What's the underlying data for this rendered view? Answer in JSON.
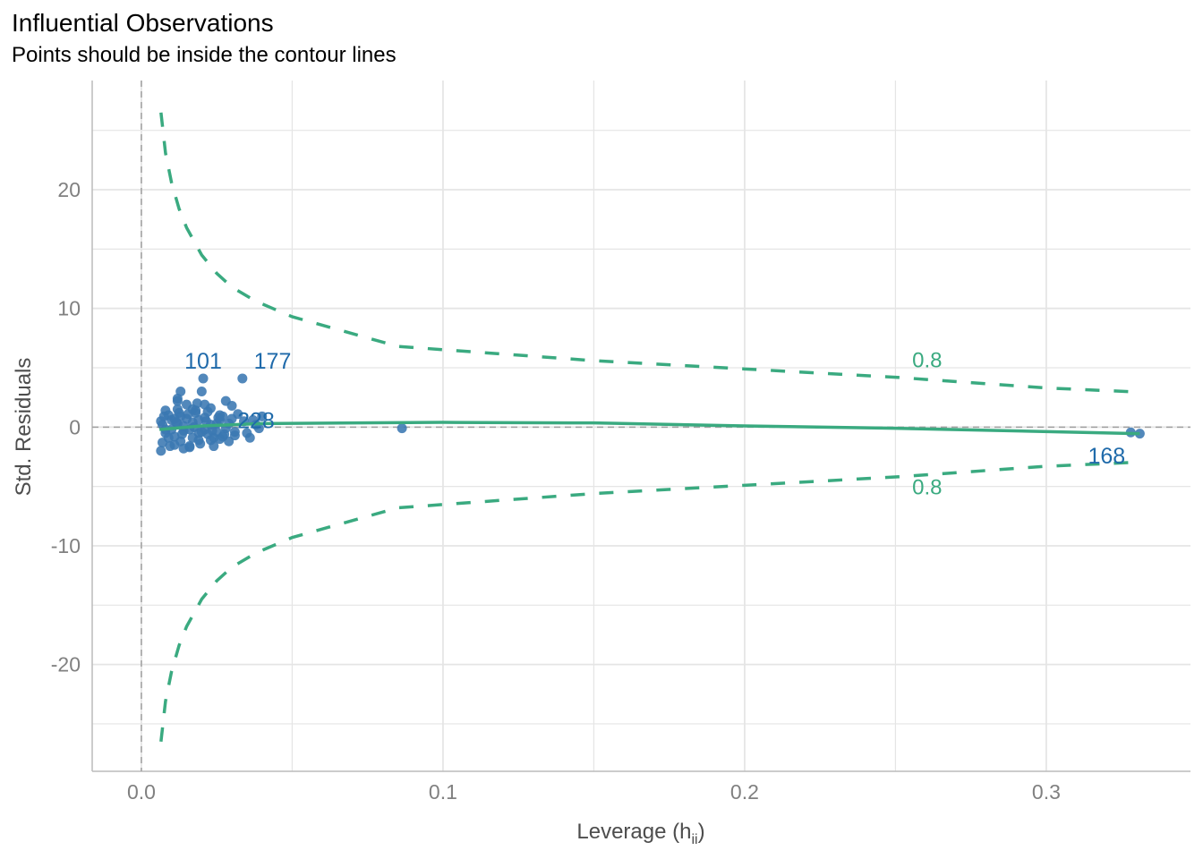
{
  "chart_data": {
    "type": "scatter",
    "title": "Influential Observations",
    "subtitle": "Points should be inside the contour lines",
    "xlabel": "Leverage (h",
    "xlabel_sub": "ii",
    "xlabel_end": ")",
    "ylabel": "Std. Residuals",
    "xlim": [
      -0.0163,
      0.3478
    ],
    "ylim": [
      -29.0,
      29.2
    ],
    "x_ticks": [
      0.0,
      0.1,
      0.2,
      0.3
    ],
    "x_tick_labels": [
      "0.0",
      "0.1",
      "0.2",
      "0.3"
    ],
    "y_ticks": [
      20,
      10,
      0,
      -10,
      -20
    ],
    "y_tick_labels": [
      "20",
      "10",
      "0",
      "-10",
      "-20"
    ],
    "grid": true,
    "colors": {
      "points": "#3a78b2",
      "labels": "#1f6aaa",
      "contour": "#3aaa80",
      "grid": "#e5e5e5",
      "refline": "#a0a0a0"
    },
    "points": {
      "x": [
        0.0205,
        0.0335,
        0.0864,
        0.328,
        0.331,
        0.0065,
        0.007,
        0.008,
        0.009,
        0.01,
        0.011,
        0.012,
        0.013,
        0.014,
        0.015,
        0.016,
        0.017,
        0.018,
        0.019,
        0.02,
        0.021,
        0.022,
        0.023,
        0.024,
        0.025,
        0.026,
        0.027,
        0.028,
        0.029,
        0.03,
        0.031,
        0.032,
        0.034,
        0.036,
        0.038,
        0.04,
        0.0065,
        0.008,
        0.009,
        0.011,
        0.012,
        0.013,
        0.015,
        0.016,
        0.018,
        0.019,
        0.021,
        0.022,
        0.024,
        0.026,
        0.028,
        0.03,
        0.007,
        0.01,
        0.012,
        0.014,
        0.017,
        0.019,
        0.021,
        0.023,
        0.025,
        0.027,
        0.029,
        0.031,
        0.035,
        0.037,
        0.039,
        0.0075,
        0.0095,
        0.0115,
        0.0135,
        0.0155,
        0.0175,
        0.0195,
        0.0215,
        0.0235,
        0.0255,
        0.0275,
        0.008,
        0.011,
        0.014,
        0.017,
        0.02,
        0.023,
        0.026,
        0.012,
        0.0125,
        0.013,
        0.016,
        0.0185
      ],
      "y": [
        4.1,
        4.1,
        -0.1,
        -0.45,
        -0.55,
        -2.0,
        0.2,
        1.4,
        -0.9,
        0.6,
        -1.5,
        2.2,
        0.9,
        -0.3,
        1.9,
        -1.7,
        0.4,
        1.2,
        -1.1,
        3.0,
        0.8,
        -0.6,
        1.6,
        -1.6,
        0.3,
        1.0,
        -0.8,
        2.2,
        -1.2,
        0.7,
        -0.4,
        1.1,
        0.5,
        -0.9,
        0.2,
        0.9,
        0.5,
        -0.5,
        1.0,
        -0.8,
        0.3,
        -1.2,
        0.7,
        -0.2,
        1.4,
        -0.5,
        -0.2,
        1.3,
        -0.9,
        0.6,
        -0.1,
        1.8,
        -1.3,
        -0.2,
        1.5,
        0.1,
        -0.9,
        0.6,
        1.9,
        -1.1,
        -0.4,
        0.9,
        0.3,
        -0.7,
        -0.5,
        0.6,
        -0.1,
        0.9,
        -1.6,
        0.4,
        -0.6,
        1.1,
        0.0,
        -1.4,
        0.5,
        -0.3,
        0.8,
        -0.6,
        -0.2,
        0.7,
        -1.8,
        1.5,
        -0.4,
        0.2,
        -1.0,
        2.4,
        1.2,
        3.0,
        -1.6,
        2.0
      ]
    },
    "point_labels": [
      {
        "text": "101",
        "x": 0.0205,
        "y": 5.6
      },
      {
        "text": "177",
        "x": 0.0435,
        "y": 5.6
      },
      {
        "text": "228",
        "x": 0.038,
        "y": 0.6
      },
      {
        "text": "168",
        "x": 0.32,
        "y": -2.4
      }
    ],
    "smooth": {
      "x": [
        0.006,
        0.02,
        0.04,
        0.1,
        0.15,
        0.2,
        0.25,
        0.331
      ],
      "y": [
        -0.2,
        0.1,
        0.3,
        0.4,
        0.35,
        0.1,
        -0.1,
        -0.55
      ]
    },
    "contour": {
      "level_label": "0.8",
      "x": [
        0.0065,
        0.008,
        0.01,
        0.0125,
        0.015,
        0.02,
        0.025,
        0.03,
        0.038,
        0.05,
        0.085,
        0.15,
        0.2,
        0.25,
        0.3,
        0.331
      ],
      "y": [
        26.5,
        23.1,
        20.6,
        18.4,
        16.8,
        14.5,
        12.95,
        11.8,
        10.6,
        9.3,
        6.8,
        5.6,
        4.9,
        4.2,
        3.3,
        2.95
      ],
      "label_upper": {
        "x": 0.2605,
        "y": 5.7
      },
      "label_lower": {
        "x": 0.2605,
        "y": -5.0
      }
    }
  }
}
